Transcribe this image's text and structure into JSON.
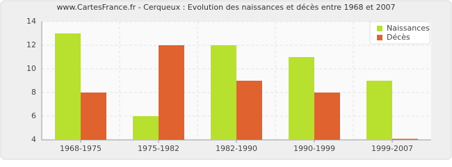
{
  "chart_data": {
    "type": "bar",
    "title": "www.CartesFrance.fr - Cerqueux : Evolution des naissances et décès entre 1968 et 2007",
    "categories": [
      "1968-1975",
      "1975-1982",
      "1982-1990",
      "1990-1999",
      "1999-2007"
    ],
    "series": [
      {
        "name": "Naissances",
        "color": "#b8e02e",
        "values": [
          13,
          6,
          12,
          11,
          9
        ]
      },
      {
        "name": "Décès",
        "color": "#e0622e",
        "values": [
          8,
          12,
          9,
          8,
          4
        ]
      }
    ],
    "ylim": [
      4,
      14
    ],
    "yticks": [
      4,
      6,
      8,
      10,
      12,
      14
    ],
    "grid": true,
    "legend": "top-right"
  }
}
